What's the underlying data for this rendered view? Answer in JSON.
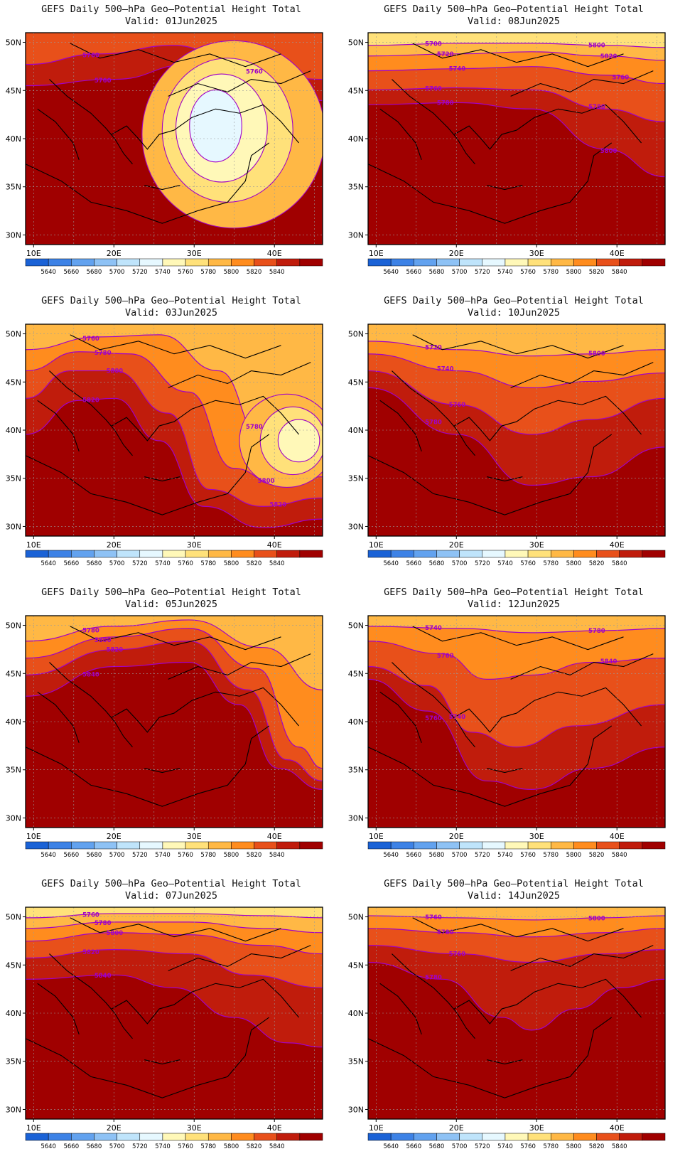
{
  "figure": {
    "panel_title": "GEFS Daily 500–hPa Geo–Potential Height Total"
  },
  "axes": {
    "lon_ticks": [
      "10E",
      "20E",
      "30E",
      "40E"
    ],
    "lat_ticks": [
      "50N",
      "45N",
      "40N",
      "35N",
      "30N"
    ],
    "lon_range": [
      9,
      46
    ],
    "lat_range": [
      29,
      51
    ]
  },
  "colorbar": {
    "labels": [
      "5640",
      "5660",
      "5680",
      "5700",
      "5720",
      "5740",
      "5760",
      "5780",
      "5800",
      "5820",
      "5840"
    ],
    "colors": [
      "#1a62d6",
      "#3d82e6",
      "#62a2ef",
      "#8ec2f5",
      "#bfe4fb",
      "#e6f8ff",
      "#fff8b8",
      "#ffe17a",
      "#ffb845",
      "#ff8c1e",
      "#e8501a",
      "#c01c0c",
      "#a00000"
    ]
  },
  "contour_color": "#a000c8",
  "panels": [
    {
      "valid_label": "Valid: 01Jun2025",
      "contour_labels": [
        "5760",
        "5760",
        "5760"
      ]
    },
    {
      "valid_label": "Valid: 08Jun2025",
      "contour_labels": [
        "5700",
        "5720",
        "5740",
        "5760",
        "5780",
        "5800",
        "5820",
        "5760",
        "5780",
        "5800"
      ]
    },
    {
      "valid_label": "Valid: 03Jun2025",
      "contour_labels": [
        "5760",
        "5780",
        "5800",
        "5820",
        "5780",
        "5800",
        "5820"
      ]
    },
    {
      "valid_label": "Valid: 10Jun2025",
      "contour_labels": [
        "5720",
        "5740",
        "5760",
        "5780",
        "5800"
      ]
    },
    {
      "valid_label": "Valid: 05Jun2025",
      "contour_labels": [
        "5780",
        "5800",
        "5820",
        "5840"
      ]
    },
    {
      "valid_label": "Valid: 12Jun2025",
      "contour_labels": [
        "5740",
        "5760",
        "5740",
        "5760",
        "5780",
        "5840"
      ]
    },
    {
      "valid_label": "Valid: 07Jun2025",
      "contour_labels": [
        "5760",
        "5780",
        "5800",
        "5820",
        "5840"
      ]
    },
    {
      "valid_label": "Valid: 14Jun2025",
      "contour_labels": [
        "5760",
        "5780",
        "5760",
        "5780",
        "5800"
      ]
    }
  ]
}
